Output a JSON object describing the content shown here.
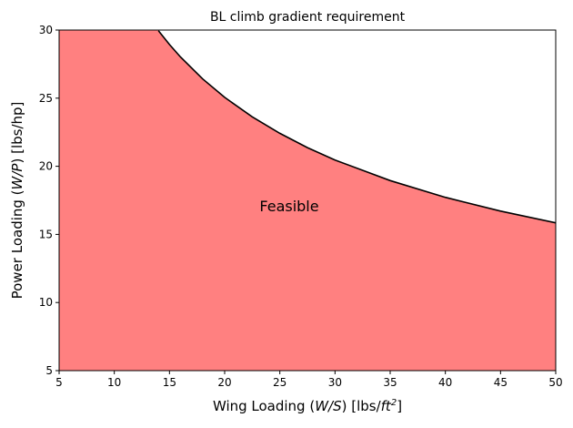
{
  "chart_data": {
    "type": "area",
    "title": "BL climb gradient requirement",
    "xlabel": [
      "Wing Loading (",
      "W/S",
      ") [lbs/",
      "ft",
      "2",
      "]"
    ],
    "ylabel": [
      "Power Loading (",
      "W/P",
      ") [lbs/hp]"
    ],
    "annotation": "Feasible",
    "x": [
      14,
      15,
      16,
      18,
      20,
      22.5,
      25,
      27.5,
      30,
      35,
      40,
      45,
      50
    ],
    "values": [
      29.95,
      28.94,
      28.02,
      26.42,
      25.06,
      23.63,
      22.42,
      21.37,
      20.46,
      18.95,
      17.72,
      16.71,
      15.85
    ],
    "color": "#000000",
    "fill_color": "#ff8080",
    "xlim": [
      5,
      50
    ],
    "ylim": [
      5,
      30
    ],
    "xticks": [
      5,
      10,
      15,
      20,
      25,
      30,
      35,
      40,
      45,
      50
    ],
    "yticks": [
      5,
      10,
      15,
      20,
      25,
      30
    ]
  }
}
